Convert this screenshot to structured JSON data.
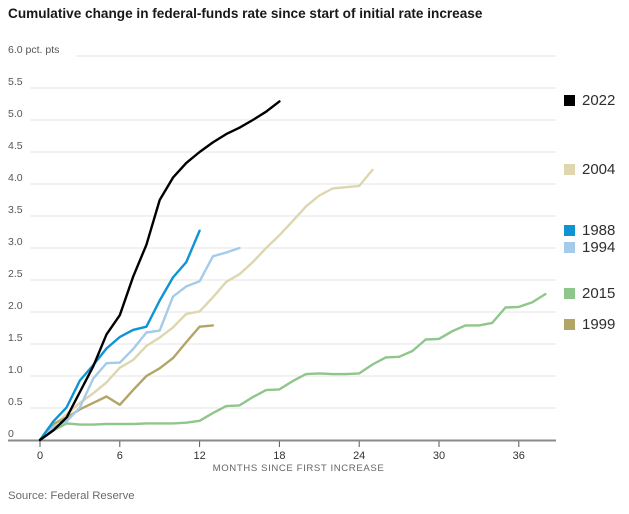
{
  "page": {
    "source": "Source: Federal Reserve"
  },
  "chart_data": {
    "type": "line",
    "title": "Cumulative change in federal-funds rate since start of initial rate increase",
    "unit_label": "pct. pts",
    "xlabel": "MONTHS SINCE FIRST INCREASE",
    "ylabel": "",
    "xlim": [
      0,
      38.8
    ],
    "ylim": [
      0,
      6
    ],
    "grid": true,
    "legend_position": "right",
    "x_ticks": [
      0,
      6,
      12,
      18,
      24,
      30,
      36
    ],
    "y_ticks": [
      0,
      0.5,
      1,
      1.5,
      2,
      2.5,
      3,
      3.5,
      4,
      4.5,
      5,
      5.5,
      6
    ],
    "y_tick_labels": [
      "0",
      "0.5",
      "1.0",
      "1.5",
      "2.0",
      "2.5",
      "3.0",
      "3.5",
      "4.0",
      "4.5",
      "5.0",
      "5.5",
      "6.0"
    ],
    "x_unit": "months since first rate increase",
    "colors": {
      "grid": "#e6e6e6",
      "axis": "#8a8a8a",
      "tick": "#555555",
      "y_tick_text": "#555555",
      "x_tick_text": "#333333"
    },
    "series": [
      {
        "name": "2022",
        "color": "#000000",
        "x_start": 0,
        "x_step": 1,
        "values": [
          0,
          0.15,
          0.35,
          0.75,
          1.15,
          1.65,
          1.95,
          2.55,
          3.05,
          3.75,
          4.1,
          4.33,
          4.5,
          4.65,
          4.78,
          4.88,
          5.0,
          5.13,
          5.29
        ]
      },
      {
        "name": "2004",
        "color": "#ddd6ae",
        "x_start": 0,
        "x_step": 1,
        "values": [
          0,
          0.23,
          0.4,
          0.58,
          0.73,
          0.9,
          1.13,
          1.25,
          1.47,
          1.6,
          1.76,
          1.97,
          2.01,
          2.23,
          2.47,
          2.59,
          2.78,
          3.0,
          3.2,
          3.42,
          3.65,
          3.82,
          3.93,
          3.95,
          3.97,
          4.22
        ]
      },
      {
        "name": "1988",
        "color": "#0e93d4",
        "x_start": 0,
        "x_step": 1,
        "values": [
          0,
          0.29,
          0.51,
          0.93,
          1.17,
          1.43,
          1.61,
          1.72,
          1.77,
          2.18,
          2.54,
          2.78,
          3.27
        ]
      },
      {
        "name": "1994",
        "color": "#a6cbe8",
        "x_start": 0,
        "x_step": 1,
        "values": [
          0,
          0.2,
          0.29,
          0.51,
          0.96,
          1.2,
          1.21,
          1.42,
          1.68,
          1.71,
          2.24,
          2.4,
          2.48,
          2.87,
          2.93,
          3.0
        ]
      },
      {
        "name": "2015",
        "color": "#8fc68c",
        "x_start": 0,
        "x_step": 1,
        "values": [
          0,
          0.15,
          0.26,
          0.24,
          0.24,
          0.25,
          0.25,
          0.25,
          0.26,
          0.26,
          0.26,
          0.27,
          0.3,
          0.42,
          0.53,
          0.54,
          0.67,
          0.78,
          0.79,
          0.92,
          1.03,
          1.04,
          1.03,
          1.03,
          1.04,
          1.18,
          1.29,
          1.3,
          1.39,
          1.57,
          1.58,
          1.7,
          1.79,
          1.79,
          1.83,
          2.07,
          2.08,
          2.15,
          2.28
        ]
      },
      {
        "name": "1999",
        "color": "#b2a566",
        "x_start": 0,
        "x_step": 1,
        "values": [
          0,
          0.25,
          0.35,
          0.48,
          0.58,
          0.68,
          0.55,
          0.78,
          1.0,
          1.12,
          1.28,
          1.53,
          1.77,
          1.79
        ]
      }
    ],
    "legend_order": [
      "2022",
      "2004",
      "1988",
      "1994",
      "2015",
      "1999"
    ],
    "draw_order": [
      "2004",
      "2015",
      "1999",
      "1994",
      "1988",
      "2022"
    ]
  }
}
